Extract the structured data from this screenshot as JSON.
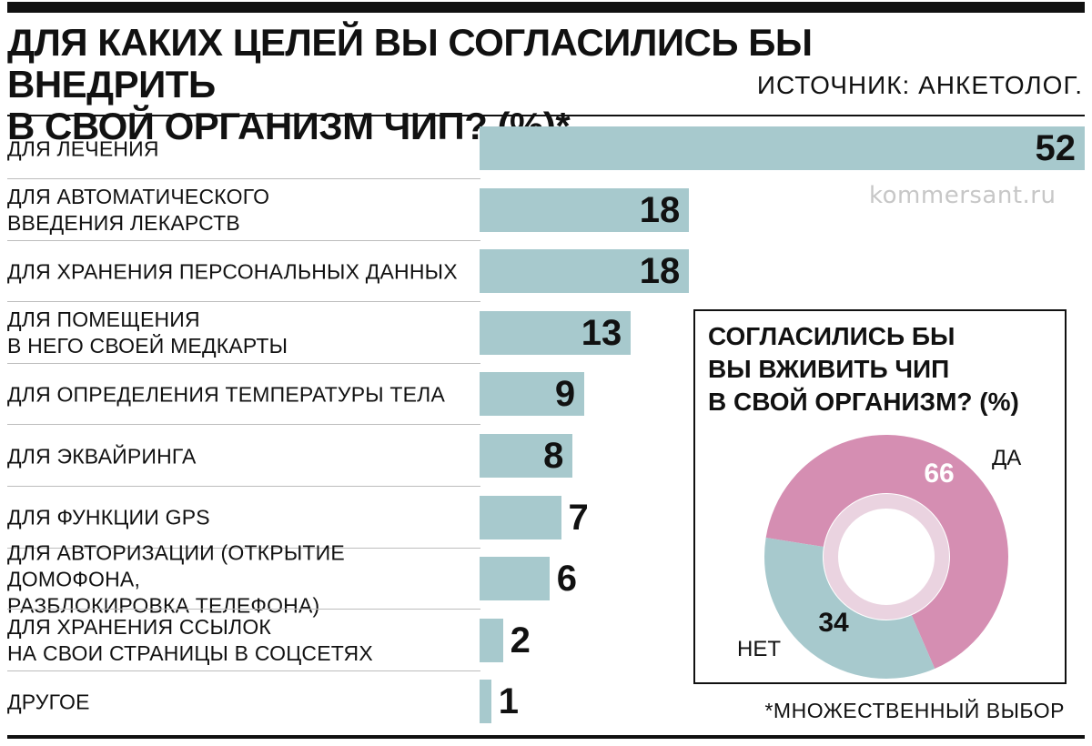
{
  "header": {
    "title_lines": [
      "ДЛЯ КАКИХ ЦЕЛЕЙ ВЫ СОГЛАСИЛИСЬ БЫ ВНЕДРИТЬ",
      "В СВОЙ ОРГАНИЗМ ЧИП? (%)*"
    ],
    "source": "ИСТОЧНИК: АНКЕТОЛОГ.",
    "watermark": "kommersant.ru",
    "footnote": "*МНОЖЕСТВЕННЫЙ ВЫБОР"
  },
  "colors": {
    "bar": "#a7c9cd",
    "yes": "#d58eb2",
    "no": "#a7c9cd",
    "inner_ring": "#ead3e0"
  },
  "chart_data": [
    {
      "type": "bar",
      "orientation": "horizontal",
      "title": "ДЛЯ КАКИХ ЦЕЛЕЙ ВЫ СОГЛАСИЛИСЬ БЫ ВНЕДРИТЬ В СВОЙ ОРГАНИЗМ ЧИП? (%)*",
      "categories": [
        [
          "ДЛЯ ЛЕЧЕНИЯ"
        ],
        [
          "ДЛЯ АВТОМАТИЧЕСКОГО",
          "ВВЕДЕНИЯ ЛЕКАРСТВ"
        ],
        [
          "ДЛЯ ХРАНЕНИЯ ПЕРСОНАЛЬНЫХ ДАННЫХ"
        ],
        [
          "ДЛЯ ПОМЕЩЕНИЯ",
          "В НЕГО СВОЕЙ МЕДКАРТЫ"
        ],
        [
          "ДЛЯ ОПРЕДЕЛЕНИЯ ТЕМПЕРАТУРЫ ТЕЛА"
        ],
        [
          "ДЛЯ ЭКВАЙРИНГА"
        ],
        [
          "ДЛЯ ФУНКЦИИ GPS"
        ],
        [
          "ДЛЯ АВТОРИЗАЦИИ (ОТКРЫТИЕ ДОМОФОНА,",
          "РАЗБЛОКИРОВКА ТЕЛЕФОНА)"
        ],
        [
          "ДЛЯ ХРАНЕНИЯ ССЫЛОК",
          "НА СВОИ СТРАНИЦЫ В СОЦСЕТЯХ"
        ],
        [
          "ДРУГОЕ"
        ]
      ],
      "values": [
        52,
        18,
        18,
        13,
        9,
        8,
        7,
        6,
        2,
        1
      ],
      "xlim": [
        0,
        52
      ]
    },
    {
      "type": "pie",
      "style": "donut",
      "title_lines": [
        "СОГЛАСИЛИСЬ БЫ",
        "ВЫ ВЖИВИТЬ ЧИП",
        "В СВОЙ ОРГАНИЗМ? (%)"
      ],
      "labels": [
        "ДА",
        "НЕТ"
      ],
      "values": [
        66,
        34
      ]
    }
  ]
}
